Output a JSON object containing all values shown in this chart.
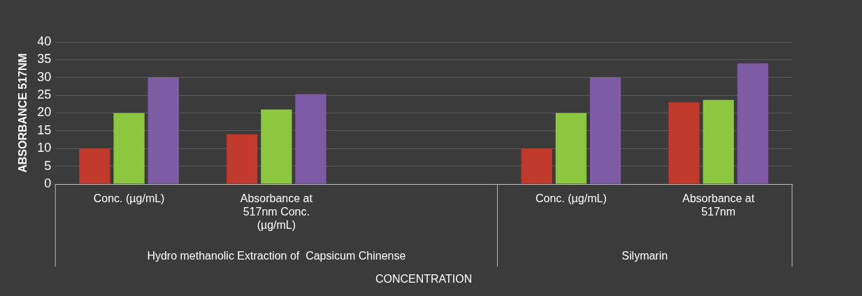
{
  "chart_data": {
    "type": "bar",
    "xlabel": "CONCENTRATION",
    "ylabel": "ABSORBANCE 517NM",
    "categories": [
      "Conc. (µg/mL)",
      "Absorbance at 517nm Conc. (µg/mL)",
      null,
      "Conc. (µg/mL)",
      "Absorbance at 517nm"
    ],
    "series": [
      {
        "color": "#c0392b",
        "values": [
          10,
          14,
          null,
          10,
          23
        ]
      },
      {
        "color": "#8dc63f",
        "values": [
          20,
          21,
          null,
          20,
          23.7
        ]
      },
      {
        "color": "#7f5ba6",
        "values": [
          30,
          25.3,
          null,
          30,
          34
        ]
      }
    ],
    "ylim": [
      0,
      40
    ],
    "yticks": [
      0,
      5,
      10,
      15,
      20,
      25,
      30,
      35,
      40
    ],
    "grid": "y",
    "legend": false,
    "annotations": [
      "Hydro methanolic Extraction of  Capsicum Chinense",
      "Silymarin"
    ]
  }
}
